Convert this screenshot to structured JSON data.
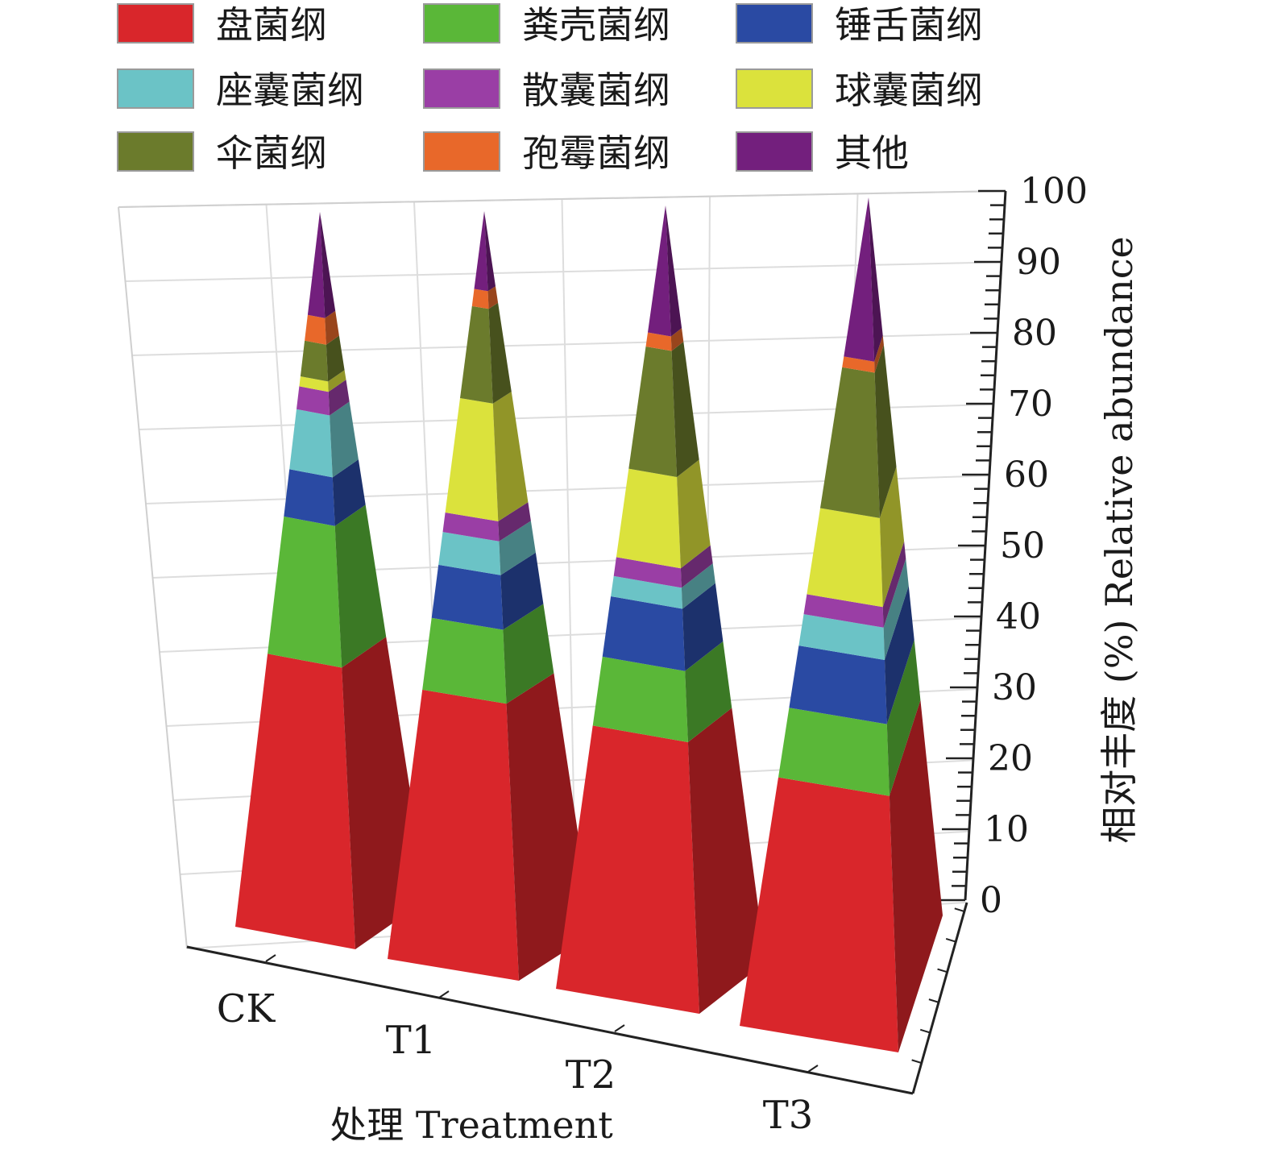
{
  "chart_data": {
    "type": "bar",
    "subtype": "3d-stacked-pyramid",
    "title": "",
    "categories": [
      "CK",
      "T1",
      "T2",
      "T3"
    ],
    "xlabel": "处理 Treatment",
    "ylabel": "相对丰度 (%) Relative abundance",
    "ylim": [
      0,
      100
    ],
    "yticks": [
      0,
      10,
      20,
      30,
      40,
      50,
      60,
      70,
      80,
      90,
      100
    ],
    "grid": true,
    "legend_position": "top",
    "series": [
      {
        "name": "盘菌纲",
        "color": "#d9262b",
        "values": [
          38.2,
          36.0,
          33.6,
          30.0
        ]
      },
      {
        "name": "粪壳菌纲",
        "color": "#5ab738",
        "values": [
          19.2,
          9.6,
          8.8,
          8.4
        ]
      },
      {
        "name": "锤舌菌纲",
        "color": "#2a4aa3",
        "values": [
          6.6,
          7.1,
          7.7,
          7.5
        ]
      },
      {
        "name": "座囊菌纲",
        "color": "#6bc3c6",
        "values": [
          8.4,
          4.4,
          2.6,
          3.8
        ]
      },
      {
        "name": "散囊菌纲",
        "color": "#9a3ea5",
        "values": [
          3.2,
          2.6,
          2.4,
          2.4
        ]
      },
      {
        "name": "球囊菌纲",
        "color": "#dbe23c",
        "values": [
          1.4,
          15.3,
          11.3,
          10.4
        ]
      },
      {
        "name": "伞菌纲",
        "color": "#6b7b2c",
        "values": [
          5.0,
          12.3,
          15.6,
          17.0
        ]
      },
      {
        "name": "孢霉菌纲",
        "color": "#e8682a",
        "values": [
          3.6,
          2.3,
          1.8,
          1.3
        ]
      },
      {
        "name": "其他",
        "color": "#731f7d",
        "values": [
          14.4,
          10.4,
          16.2,
          19.2
        ]
      }
    ]
  }
}
